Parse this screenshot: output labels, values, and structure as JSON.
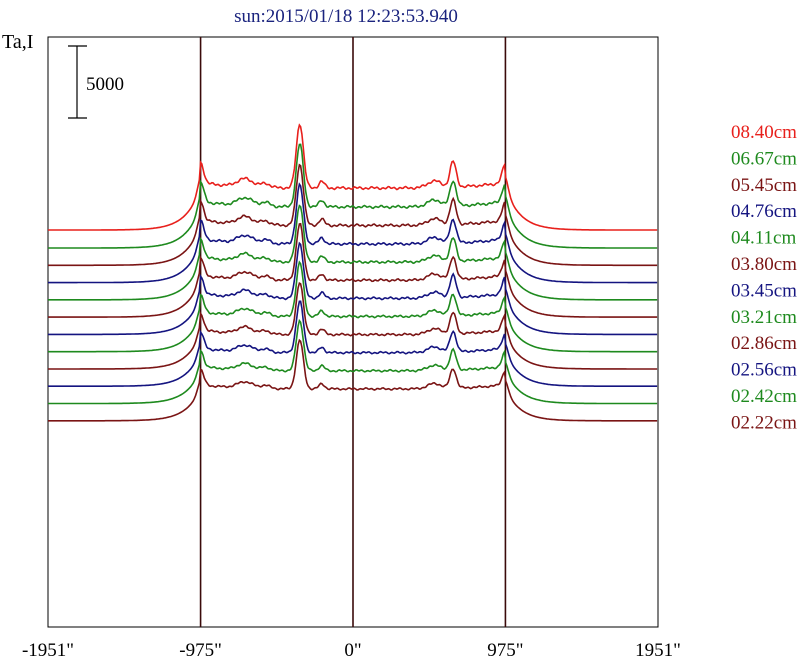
{
  "chart_data": {
    "type": "line",
    "title": "sun:2015/01/18 12:23:53.940",
    "ylabel": "Ta,I",
    "scale_bar": {
      "label": "5000",
      "value": 5000
    },
    "x_range": [
      -1951,
      1951
    ],
    "x_ticks": [
      {
        "value": -1951,
        "label": "-1951\""
      },
      {
        "value": -975,
        "label": "-975\""
      },
      {
        "value": 0,
        "label": "0\""
      },
      {
        "value": 975,
        "label": "975\""
      },
      {
        "value": 1951,
        "label": "1951\""
      }
    ],
    "vertical_lines": [
      -975,
      0,
      975
    ],
    "grid": false,
    "legend_position": "right",
    "series": [
      {
        "name": "08.40cm",
        "color": "#e8201c",
        "baseline": 0,
        "amplitude": 1.0
      },
      {
        "name": "06.67cm",
        "color": "#1e8a1e",
        "baseline": -1250,
        "amplitude": 0.98
      },
      {
        "name": "05.45cm",
        "color": "#7a1414",
        "baseline": -2450,
        "amplitude": 0.95
      },
      {
        "name": "04.76cm",
        "color": "#141480",
        "baseline": -3650,
        "amplitude": 0.92
      },
      {
        "name": "04.11cm",
        "color": "#1e8a1e",
        "baseline": -4850,
        "amplitude": 0.9
      },
      {
        "name": "03.80cm",
        "color": "#7a1414",
        "baseline": -6050,
        "amplitude": 0.88
      },
      {
        "name": "03.45cm",
        "color": "#141480",
        "baseline": -7250,
        "amplitude": 0.86
      },
      {
        "name": "03.21cm",
        "color": "#1e8a1e",
        "baseline": -8450,
        "amplitude": 0.84
      },
      {
        "name": "02.86cm",
        "color": "#7a1414",
        "baseline": -9650,
        "amplitude": 0.82
      },
      {
        "name": "02.56cm",
        "color": "#141480",
        "baseline": -10850,
        "amplitude": 0.8
      },
      {
        "name": "02.42cm",
        "color": "#1e8a1e",
        "baseline": -12050,
        "amplitude": 0.78
      },
      {
        "name": "02.22cm",
        "color": "#7a1414",
        "baseline": -13250,
        "amplitude": 0.76
      }
    ]
  }
}
